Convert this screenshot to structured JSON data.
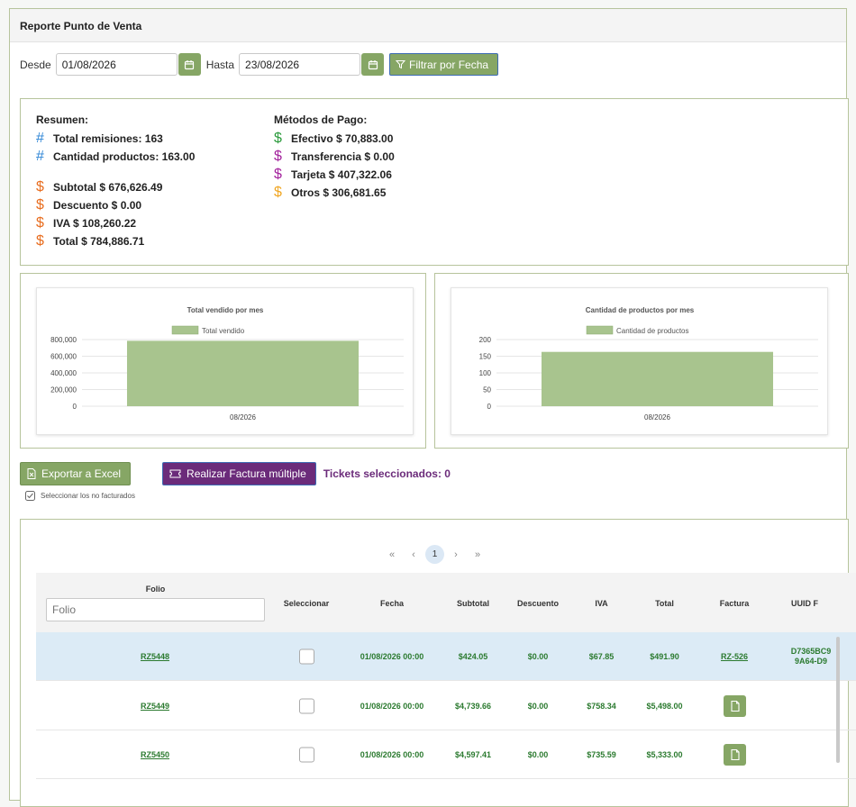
{
  "header": {
    "title": "Reporte Punto de Venta"
  },
  "filters": {
    "desde_label": "Desde",
    "desde_value": "01/08/2026",
    "hasta_label": "Hasta",
    "hasta_value": "23/08/2026",
    "filter_button": "Filtrar por Fecha",
    "calendar_icon": "calendar-icon",
    "filter_icon": "funnel-icon"
  },
  "resumen": {
    "title": "Resumen:",
    "total_remisiones": "Total remisiones: 163",
    "cantidad_productos": "Cantidad productos: 163.00",
    "subtotal": "Subtotal $ 676,626.49",
    "descuento": "Descuento $ 0.00",
    "iva": "IVA $ 108,260.22",
    "total": "Total $ 784,886.71"
  },
  "metodos": {
    "title": "Métodos de Pago:",
    "efectivo": "Efectivo $ 70,883.00",
    "transferencia": "Transferencia $ 0.00",
    "tarjeta": "Tarjeta $ 407,322.06",
    "otros": "Otros $ 306,681.65"
  },
  "colors": {
    "accent_green": "#86a665",
    "purple": "#6b2b7a",
    "hash_blue": "#2f86d6",
    "dollar_orange": "#e86d1f",
    "dollar_green": "#2a9a3b",
    "dollar_magenta": "#a2219c",
    "dollar_yellow": "#f0a520",
    "bar_fill": "#a8c48e"
  },
  "chart_data": [
    {
      "type": "bar",
      "title": "Total vendido por mes",
      "categories": [
        "08/2026"
      ],
      "series": [
        {
          "name": "Total vendido",
          "values": [
            784886.71
          ]
        }
      ],
      "ylim": [
        0,
        800000
      ],
      "yticks": [
        "800,000",
        "600,000",
        "400,000",
        "200,000",
        "0"
      ],
      "legend": "top"
    },
    {
      "type": "bar",
      "title": "Cantidad de productos por mes",
      "categories": [
        "08/2026"
      ],
      "series": [
        {
          "name": "Cantidad de productos",
          "values": [
            163
          ]
        }
      ],
      "ylim": [
        0,
        200
      ],
      "yticks": [
        "200",
        "150",
        "100",
        "50",
        "0"
      ],
      "legend": "top"
    }
  ],
  "actions": {
    "excel_button": "Exportar a Excel",
    "factura_button": "Realizar Factura múltiple",
    "tickets_selected": "Tickets seleccionados: 0",
    "no_facturados_label": "Seleccionar los no facturados"
  },
  "pager": {
    "first": "«",
    "prev": "‹",
    "current": "1",
    "next": "›",
    "last": "»"
  },
  "table": {
    "folio_header": "Folio",
    "folio_placeholder": "Folio",
    "columns": [
      "Seleccionar",
      "Fecha",
      "Subtotal",
      "Descuento",
      "IVA",
      "Total",
      "Factura",
      "UUID F"
    ],
    "rows": [
      {
        "folio": "RZ5448",
        "fecha": "01/08/2026 00:00",
        "subtotal": "$424.05",
        "descuento": "$0.00",
        "iva": "$67.85",
        "total": "$491.90",
        "factura": "RZ-526",
        "uuid_1": "D7365BC9",
        "uuid_2": "9A64-D9"
      },
      {
        "folio": "RZ5449",
        "fecha": "01/08/2026 00:00",
        "subtotal": "$4,739.66",
        "descuento": "$0.00",
        "iva": "$758.34",
        "total": "$5,498.00"
      },
      {
        "folio": "RZ5450",
        "fecha": "01/08/2026 00:00",
        "subtotal": "$4,597.41",
        "descuento": "$0.00",
        "iva": "$735.59",
        "total": "$5,333.00"
      }
    ]
  }
}
